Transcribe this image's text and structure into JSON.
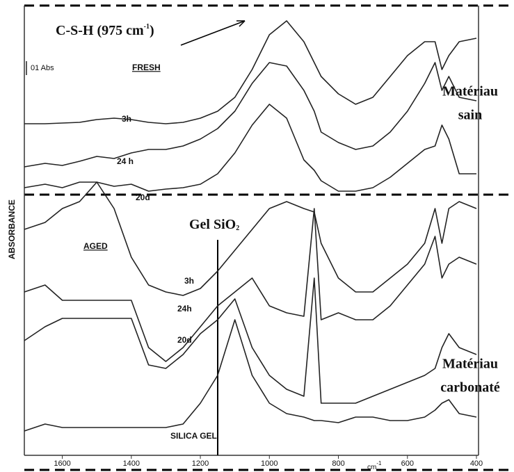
{
  "chart_data": {
    "type": "line",
    "y_label": "ABSORBANCE",
    "x_unit": "cm",
    "x_unit_sup": "-1",
    "scale_bar": "01 Abs",
    "groups": [
      "FRESH",
      "AGED"
    ],
    "annotations": {
      "csh": {
        "text": "C-S-H (975 cm",
        "sup": "-1",
        "tail": ")"
      },
      "gel": {
        "text": "Gel SiO",
        "sub": "2"
      }
    },
    "regions": [
      {
        "line1": "Matériau",
        "line2": "sain"
      },
      {
        "line1": "Matériau",
        "line2": "carbonaté"
      }
    ],
    "x": [
      1710,
      1650,
      1600,
      1550,
      1500,
      1450,
      1400,
      1350,
      1300,
      1250,
      1200,
      1150,
      1100,
      1050,
      1000,
      950,
      900,
      870,
      850,
      800,
      750,
      700,
      650,
      600,
      550,
      520,
      500,
      480,
      450,
      400
    ],
    "xlim": [
      1710,
      400
    ],
    "xticks": [
      1600,
      1400,
      1200,
      1000,
      800,
      600,
      400
    ],
    "ylim": [
      0,
      650
    ],
    "color": "#222",
    "series": [
      {
        "name": "3h",
        "values": [
          477,
          477,
          478,
          479,
          483,
          485,
          483,
          479,
          477,
          479,
          485,
          495,
          515,
          555,
          605,
          625,
          595,
          565,
          545,
          520,
          505,
          515,
          545,
          575,
          595,
          595,
          555,
          575,
          595,
          600
        ]
      },
      {
        "name": "24 h",
        "values": [
          415,
          420,
          417,
          423,
          430,
          427,
          435,
          440,
          440,
          445,
          455,
          470,
          495,
          535,
          565,
          560,
          525,
          495,
          465,
          450,
          440,
          445,
          465,
          495,
          535,
          565,
          525,
          545,
          515,
          510
        ]
      },
      {
        "name": "20d",
        "values": [
          385,
          390,
          385,
          393,
          393,
          387,
          390,
          380,
          383,
          385,
          390,
          405,
          435,
          475,
          505,
          485,
          425,
          410,
          395,
          380,
          380,
          385,
          400,
          420,
          440,
          445,
          475,
          455,
          405,
          405
        ]
      },
      {
        "name": "3h",
        "values": [
          325,
          335,
          355,
          365,
          393,
          355,
          285,
          245,
          235,
          230,
          240,
          265,
          295,
          325,
          355,
          365,
          355,
          350,
          305,
          255,
          235,
          235,
          255,
          275,
          305,
          355,
          305,
          355,
          365,
          355
        ]
      },
      {
        "name": "24h",
        "values": [
          235,
          245,
          223,
          223,
          223,
          223,
          223,
          155,
          135,
          155,
          185,
          215,
          235,
          255,
          215,
          205,
          200,
          355,
          195,
          205,
          195,
          195,
          215,
          245,
          275,
          315,
          255,
          275,
          285,
          275
        ]
      },
      {
        "name": "20d",
        "values": [
          165,
          185,
          197,
          197,
          197,
          197,
          197,
          130,
          125,
          145,
          175,
          195,
          225,
          155,
          115,
          95,
          85,
          255,
          75,
          75,
          75,
          85,
          95,
          105,
          115,
          125,
          155,
          175,
          155,
          145
        ]
      },
      {
        "name": "SILICA GEL",
        "values": [
          35,
          45,
          40,
          40,
          40,
          40,
          40,
          40,
          40,
          45,
          75,
          115,
          195,
          115,
          75,
          60,
          55,
          50,
          50,
          47,
          55,
          55,
          50,
          50,
          55,
          65,
          75,
          80,
          60,
          55
        ]
      }
    ]
  }
}
